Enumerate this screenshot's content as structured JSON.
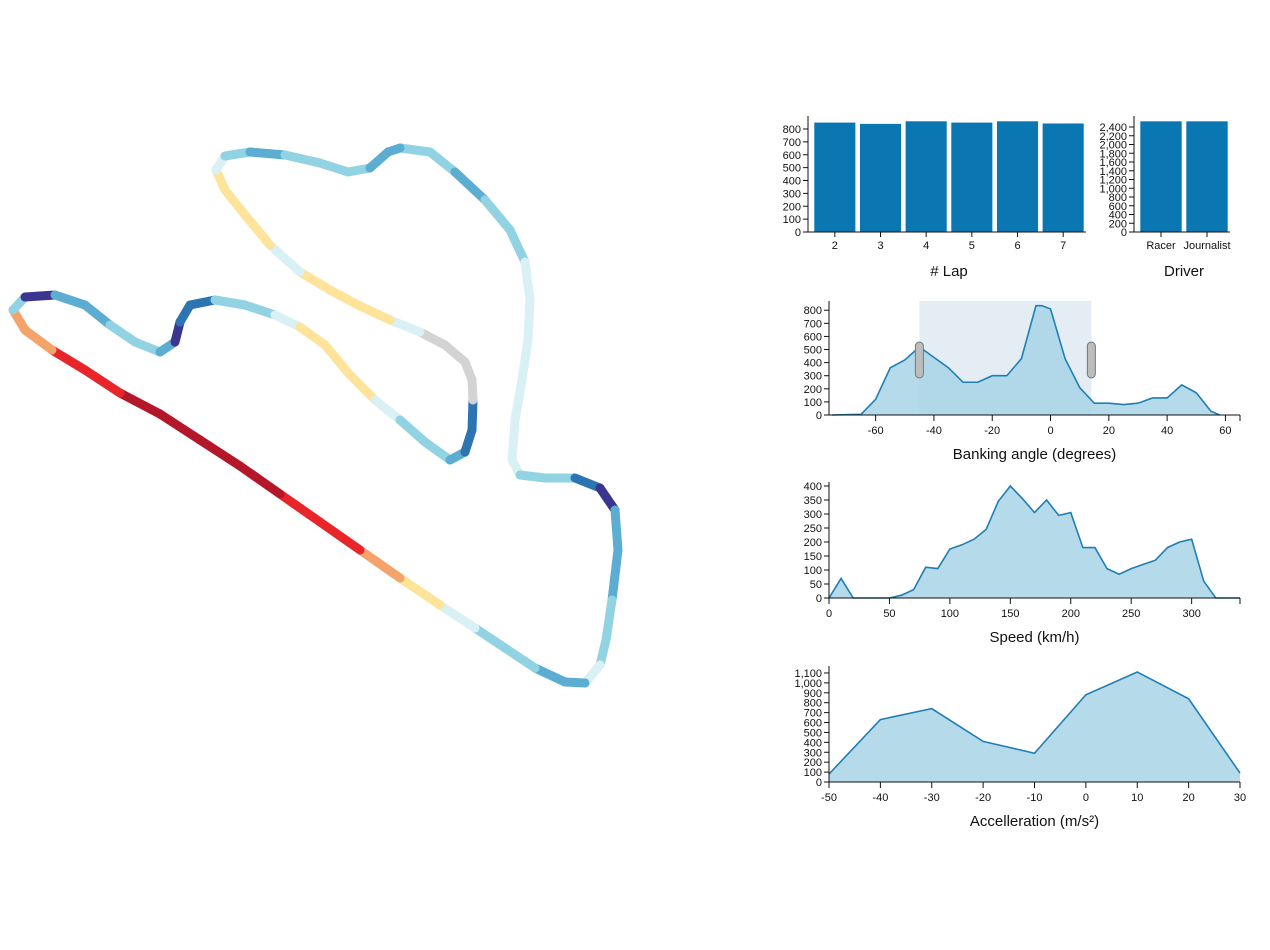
{
  "track": {
    "colors": {
      "red": "#e8262a",
      "darkred": "#b5172a",
      "orange": "#f4a46a",
      "yellow": "#fee39a",
      "lightcyan": "#d9f0f5",
      "cyan": "#91d3e3",
      "blue": "#5cadd2",
      "darkblue": "#2d74b2",
      "navy": "#3a3690",
      "gray": "#d3d3d3"
    }
  },
  "chart_data": [
    {
      "type": "bar",
      "categories": [
        "2",
        "3",
        "4",
        "5",
        "6",
        "7"
      ],
      "values": [
        850,
        840,
        860,
        850,
        860,
        843
      ],
      "xlabel": "# Lap",
      "ylim": [
        0,
        870
      ],
      "yticks": [
        0,
        100,
        200,
        300,
        400,
        500,
        600,
        700,
        800
      ],
      "ytick_labels": [
        "0",
        "100",
        "200",
        "300",
        "400",
        "500",
        "600",
        "700",
        "800"
      ],
      "color": "#0a77b2"
    },
    {
      "type": "bar",
      "categories": [
        "Racer",
        "Journalist"
      ],
      "values": [
        2530,
        2530
      ],
      "xlabel": "Driver",
      "ylim": [
        0,
        2560
      ],
      "yticks": [
        0,
        200,
        400,
        600,
        800,
        1000,
        1200,
        1400,
        1600,
        1800,
        2000,
        2200,
        2400
      ],
      "ytick_labels": [
        "0",
        "200",
        "400",
        "600",
        "800",
        "1,000",
        "1,200",
        "1,400",
        "1,600",
        "1,800",
        "2,000",
        "2,200",
        "2,400"
      ],
      "color": "#0a77b2"
    },
    {
      "type": "area",
      "x": [
        -75,
        -65,
        -60,
        -55,
        -50,
        -45,
        -40,
        -35,
        -30,
        -25,
        -20,
        -15,
        -10,
        -5,
        -3,
        0,
        5,
        10,
        15,
        20,
        25,
        30,
        35,
        40,
        45,
        50,
        55,
        58
      ],
      "y": [
        0,
        5,
        120,
        360,
        420,
        520,
        440,
        360,
        250,
        250,
        300,
        300,
        430,
        835,
        835,
        810,
        430,
        210,
        90,
        90,
        80,
        90,
        130,
        130,
        230,
        170,
        30,
        0
      ],
      "xlabel": "Banking angle (degrees)",
      "xlim": [
        -76,
        65
      ],
      "ylim": [
        0,
        840
      ],
      "xticks": [
        -60,
        -40,
        -20,
        0,
        20,
        40,
        60
      ],
      "xtick_labels": [
        "-60",
        "-40",
        "-20",
        "0",
        "20",
        "40",
        "60"
      ],
      "yticks": [
        0,
        100,
        200,
        300,
        400,
        500,
        600,
        700,
        800
      ],
      "ytick_labels": [
        "0",
        "100",
        "200",
        "300",
        "400",
        "500",
        "600",
        "700",
        "800"
      ],
      "brush": [
        -45,
        14
      ],
      "color": "#1f7fb5",
      "fill": "#a8d3e6"
    },
    {
      "type": "area",
      "x": [
        0,
        10,
        20,
        50,
        60,
        70,
        80,
        90,
        100,
        110,
        120,
        130,
        140,
        150,
        160,
        170,
        180,
        190,
        200,
        210,
        220,
        230,
        240,
        250,
        260,
        270,
        280,
        290,
        300,
        310,
        320,
        340
      ],
      "y": [
        0,
        70,
        0,
        0,
        10,
        30,
        110,
        105,
        175,
        190,
        210,
        245,
        345,
        400,
        355,
        305,
        350,
        295,
        305,
        180,
        180,
        105,
        85,
        105,
        120,
        135,
        180,
        200,
        210,
        60,
        0,
        0
      ],
      "xlabel": "Speed (km/h)",
      "xlim": [
        0,
        340
      ],
      "ylim": [
        0,
        400
      ],
      "xticks": [
        0,
        50,
        100,
        150,
        200,
        250,
        300
      ],
      "xtick_labels": [
        "0",
        "50",
        "100",
        "150",
        "200",
        "250",
        "300"
      ],
      "yticks": [
        0,
        50,
        100,
        150,
        200,
        250,
        300,
        350,
        400
      ],
      "ytick_labels": [
        "0",
        "50",
        "100",
        "150",
        "200",
        "250",
        "300",
        "350",
        "400"
      ],
      "color": "#1f7fb5",
      "fill": "#a8d3e6"
    },
    {
      "type": "area",
      "x": [
        -50,
        -40,
        -30,
        -20,
        -10,
        0,
        10,
        20,
        30
      ],
      "y": [
        80,
        630,
        740,
        410,
        290,
        880,
        1110,
        840,
        90
      ],
      "xlabel": "Accelleration (m/s²)",
      "xlim": [
        -50,
        30
      ],
      "ylim": [
        0,
        1130
      ],
      "xticks": [
        -50,
        -40,
        -30,
        -20,
        -10,
        0,
        10,
        20,
        30
      ],
      "xtick_labels": [
        "-50",
        "-40",
        "-30",
        "-20",
        "-10",
        "0",
        "10",
        "20",
        "30"
      ],
      "yticks": [
        0,
        100,
        200,
        300,
        400,
        500,
        600,
        700,
        800,
        900,
        1000,
        1100
      ],
      "ytick_labels": [
        "0",
        "100",
        "200",
        "300",
        "400",
        "500",
        "600",
        "700",
        "800",
        "900",
        "1,000",
        "1,100"
      ],
      "color": "#1f7fb5",
      "fill": "#a8d3e6"
    }
  ]
}
